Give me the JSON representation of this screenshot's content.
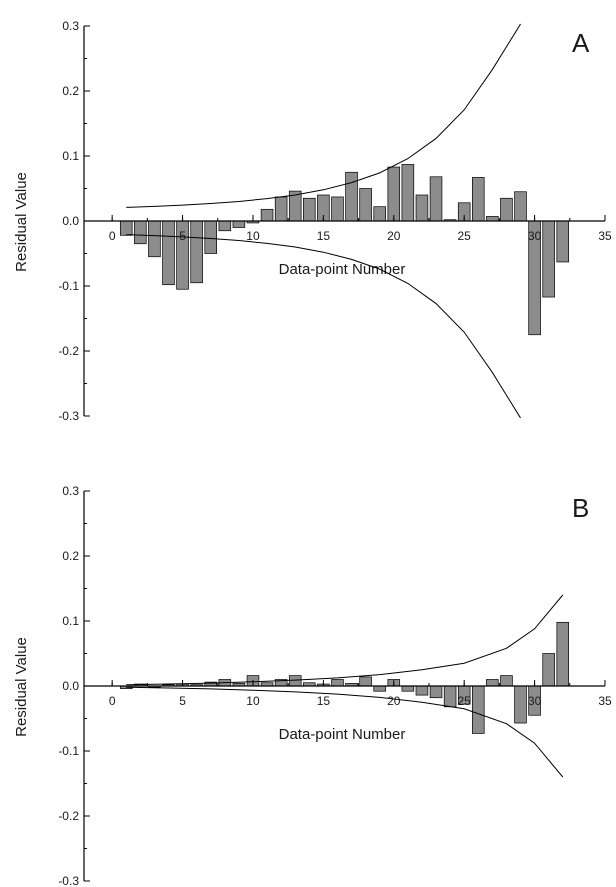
{
  "chart_data": [
    {
      "type": "bar",
      "panel_label": "A",
      "xlabel": "Data-point Number",
      "ylabel": "Residual Value",
      "xlim": [
        -2,
        35
      ],
      "ylim": [
        -0.3,
        0.3
      ],
      "xticks": [
        0,
        5,
        10,
        15,
        20,
        25,
        30,
        35
      ],
      "yticks": [
        0.3,
        0.2,
        0.1,
        0.0,
        -0.1,
        -0.2,
        -0.3
      ],
      "x": [
        1,
        2,
        3,
        4,
        5,
        6,
        7,
        8,
        9,
        10,
        11,
        12,
        13,
        14,
        15,
        16,
        17,
        18,
        19,
        20,
        21,
        22,
        23,
        24,
        25,
        26,
        27,
        28,
        29,
        30,
        31,
        32
      ],
      "values": [
        -0.022,
        -0.035,
        -0.055,
        -0.098,
        -0.105,
        -0.095,
        -0.05,
        -0.015,
        -0.01,
        -0.003,
        0.018,
        0.037,
        0.046,
        0.035,
        0.04,
        0.037,
        0.075,
        0.05,
        0.022,
        0.083,
        0.087,
        0.04,
        0.068,
        0.002,
        0.028,
        0.067,
        0.007,
        0.035,
        0.045,
        -0.175,
        -0.117,
        -0.063
      ],
      "envelope": {
        "x": [
          1,
          3,
          5,
          7,
          9,
          11,
          13,
          15,
          17,
          19,
          21,
          23,
          25,
          27,
          29
        ],
        "upper": [
          0.021,
          0.0225,
          0.0245,
          0.027,
          0.03,
          0.0345,
          0.04,
          0.048,
          0.059,
          0.074,
          0.096,
          0.127,
          0.171,
          0.233,
          0.303
        ],
        "lower": [
          -0.021,
          -0.0225,
          -0.0245,
          -0.027,
          -0.03,
          -0.0345,
          -0.04,
          -0.048,
          -0.059,
          -0.074,
          -0.096,
          -0.127,
          -0.171,
          -0.233,
          -0.303
        ]
      }
    },
    {
      "type": "bar",
      "panel_label": "B",
      "xlabel": "Data-point Number",
      "ylabel": "Residual Value",
      "xlim": [
        -2,
        35
      ],
      "ylim": [
        -0.3,
        0.3
      ],
      "xticks": [
        0,
        5,
        10,
        15,
        20,
        25,
        30,
        35
      ],
      "yticks": [
        0.3,
        0.2,
        0.1,
        0.0,
        -0.1,
        -0.2,
        -0.3
      ],
      "x": [
        1,
        2,
        3,
        4,
        5,
        6,
        7,
        8,
        9,
        10,
        11,
        12,
        13,
        14,
        15,
        16,
        17,
        18,
        19,
        20,
        21,
        22,
        23,
        24,
        25,
        26,
        27,
        28,
        29,
        30,
        31,
        32
      ],
      "values": [
        -0.004,
        0.003,
        -0.002,
        0.002,
        0.003,
        0.002,
        0.006,
        0.01,
        0.004,
        0.016,
        0.005,
        0.01,
        0.016,
        0.005,
        0.003,
        0.01,
        0.004,
        0.014,
        -0.008,
        0.01,
        -0.008,
        -0.014,
        -0.018,
        -0.032,
        -0.028,
        -0.073,
        0.01,
        0.016,
        -0.057,
        -0.045,
        0.05,
        0.098
      ],
      "envelope": {
        "x": [
          1,
          4,
          7,
          10,
          13,
          16,
          19,
          22,
          25,
          28,
          30,
          32
        ],
        "upper": [
          0.002,
          0.003,
          0.0045,
          0.0065,
          0.009,
          0.0125,
          0.0175,
          0.025,
          0.035,
          0.058,
          0.088,
          0.14
        ],
        "lower": [
          -0.002,
          -0.003,
          -0.0045,
          -0.0065,
          -0.009,
          -0.0125,
          -0.0175,
          -0.025,
          -0.035,
          -0.058,
          -0.088,
          -0.14
        ]
      }
    }
  ]
}
